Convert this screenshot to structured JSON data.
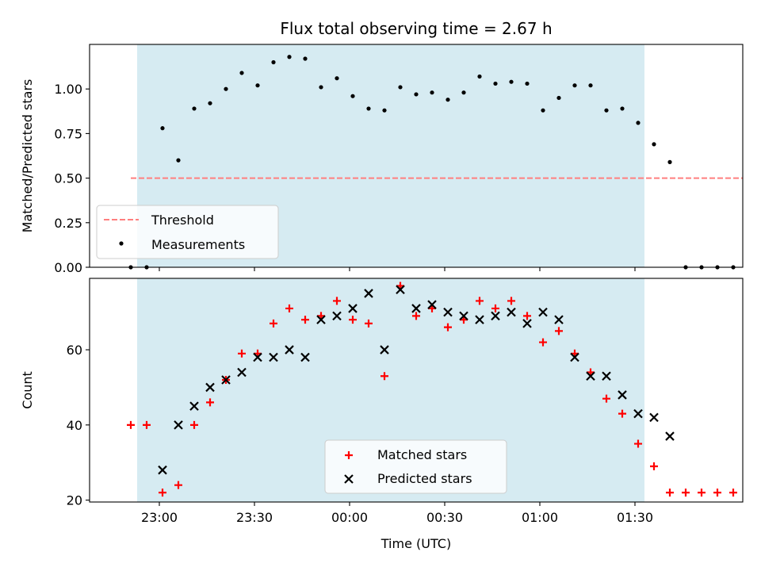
{
  "chart_data": [
    {
      "type": "scatter",
      "title": "Flux total observing time = 2.67 h",
      "ylabel": "Matched/Predicted stars",
      "xlim": [
        "22:38",
        "02:04"
      ],
      "ylim": [
        0,
        1.25
      ],
      "yticks": [
        "0.00",
        "0.25",
        "0.50",
        "0.75",
        "1.00"
      ],
      "threshold": 0.5,
      "threshold_x": [
        "22:51",
        "02:04"
      ],
      "shaded_span": [
        "22:53",
        "01:33"
      ],
      "legend": {
        "position": "lower-left",
        "threshold_label": "Threshold",
        "measurements_label": "Measurements"
      },
      "series": [
        {
          "name": "Measurements",
          "x": [
            "22:51",
            "22:56",
            "23:01",
            "23:06",
            "23:11",
            "23:16",
            "23:21",
            "23:26",
            "23:31",
            "23:36",
            "23:41",
            "23:46",
            "23:51",
            "23:56",
            "00:01",
            "00:06",
            "00:11",
            "00:16",
            "00:21",
            "00:26",
            "00:31",
            "00:36",
            "00:41",
            "00:46",
            "00:51",
            "00:56",
            "01:01",
            "01:06",
            "01:11",
            "01:16",
            "01:21",
            "01:26",
            "01:31",
            "01:36",
            "01:41",
            "01:46",
            "01:51",
            "01:56",
            "02:01"
          ],
          "values": [
            0,
            0,
            0.78,
            0.6,
            0.89,
            0.92,
            1.0,
            1.09,
            1.02,
            1.15,
            1.18,
            1.17,
            1.01,
            1.06,
            0.96,
            0.89,
            0.88,
            1.01,
            0.97,
            0.98,
            0.94,
            0.98,
            1.07,
            1.03,
            1.04,
            1.03,
            0.88,
            0.95,
            1.02,
            1.02,
            0.88,
            0.89,
            0.81,
            0.69,
            0.59,
            0,
            0,
            0,
            0
          ]
        }
      ]
    },
    {
      "type": "scatter",
      "xlabel": "Time (UTC)",
      "ylabel": "Count",
      "xlim": [
        "22:38",
        "02:04"
      ],
      "ylim": [
        19.5,
        79
      ],
      "yticks": [
        "20",
        "40",
        "60"
      ],
      "xticks": [
        "23:00",
        "23:30",
        "00:00",
        "00:30",
        "01:00",
        "01:30"
      ],
      "shaded_span": [
        "22:53",
        "01:33"
      ],
      "legend": {
        "position": "lower-center",
        "matched_label": "Matched stars",
        "predicted_label": "Predicted stars"
      },
      "series": [
        {
          "name": "Matched stars",
          "marker": "+",
          "color": "#ff0000",
          "x": [
            "22:51",
            "22:56",
            "23:01",
            "23:06",
            "23:11",
            "23:16",
            "23:21",
            "23:26",
            "23:31",
            "23:36",
            "23:41",
            "23:46",
            "23:51",
            "23:56",
            "00:01",
            "00:06",
            "00:11",
            "00:16",
            "00:21",
            "00:26",
            "00:31",
            "00:36",
            "00:41",
            "00:46",
            "00:51",
            "00:56",
            "01:01",
            "01:06",
            "01:11",
            "01:16",
            "01:21",
            "01:26",
            "01:31",
            "01:36",
            "01:41",
            "01:46",
            "01:51",
            "01:56",
            "02:01"
          ],
          "values": [
            40,
            40,
            22,
            24,
            40,
            46,
            52,
            59,
            59,
            67,
            71,
            68,
            69,
            73,
            68,
            67,
            53,
            77,
            69,
            71,
            66,
            68,
            73,
            71,
            73,
            69,
            62,
            65,
            59,
            54,
            47,
            43,
            35,
            29,
            22,
            22,
            22,
            22,
            22
          ]
        },
        {
          "name": "Predicted stars",
          "marker": "x",
          "color": "#000000",
          "x": [
            "23:01",
            "23:06",
            "23:11",
            "23:16",
            "23:21",
            "23:26",
            "23:31",
            "23:36",
            "23:41",
            "23:46",
            "23:51",
            "23:56",
            "00:01",
            "00:06",
            "00:11",
            "00:16",
            "00:21",
            "00:26",
            "00:31",
            "00:36",
            "00:41",
            "00:46",
            "00:51",
            "00:56",
            "01:01",
            "01:06",
            "01:11",
            "01:16",
            "01:21",
            "01:26",
            "01:31",
            "01:36",
            "01:41"
          ],
          "values": [
            28,
            40,
            45,
            50,
            52,
            54,
            58,
            58,
            60,
            58,
            68,
            69,
            71,
            75,
            60,
            76,
            71,
            72,
            70,
            69,
            68,
            69,
            70,
            67,
            70,
            68,
            58,
            53,
            53,
            48,
            43,
            42,
            37
          ]
        }
      ]
    }
  ],
  "colors": {
    "shade": "#add8e6",
    "threshold": "#ff7f7f",
    "matched": "#ff0000",
    "predicted": "#000000"
  }
}
